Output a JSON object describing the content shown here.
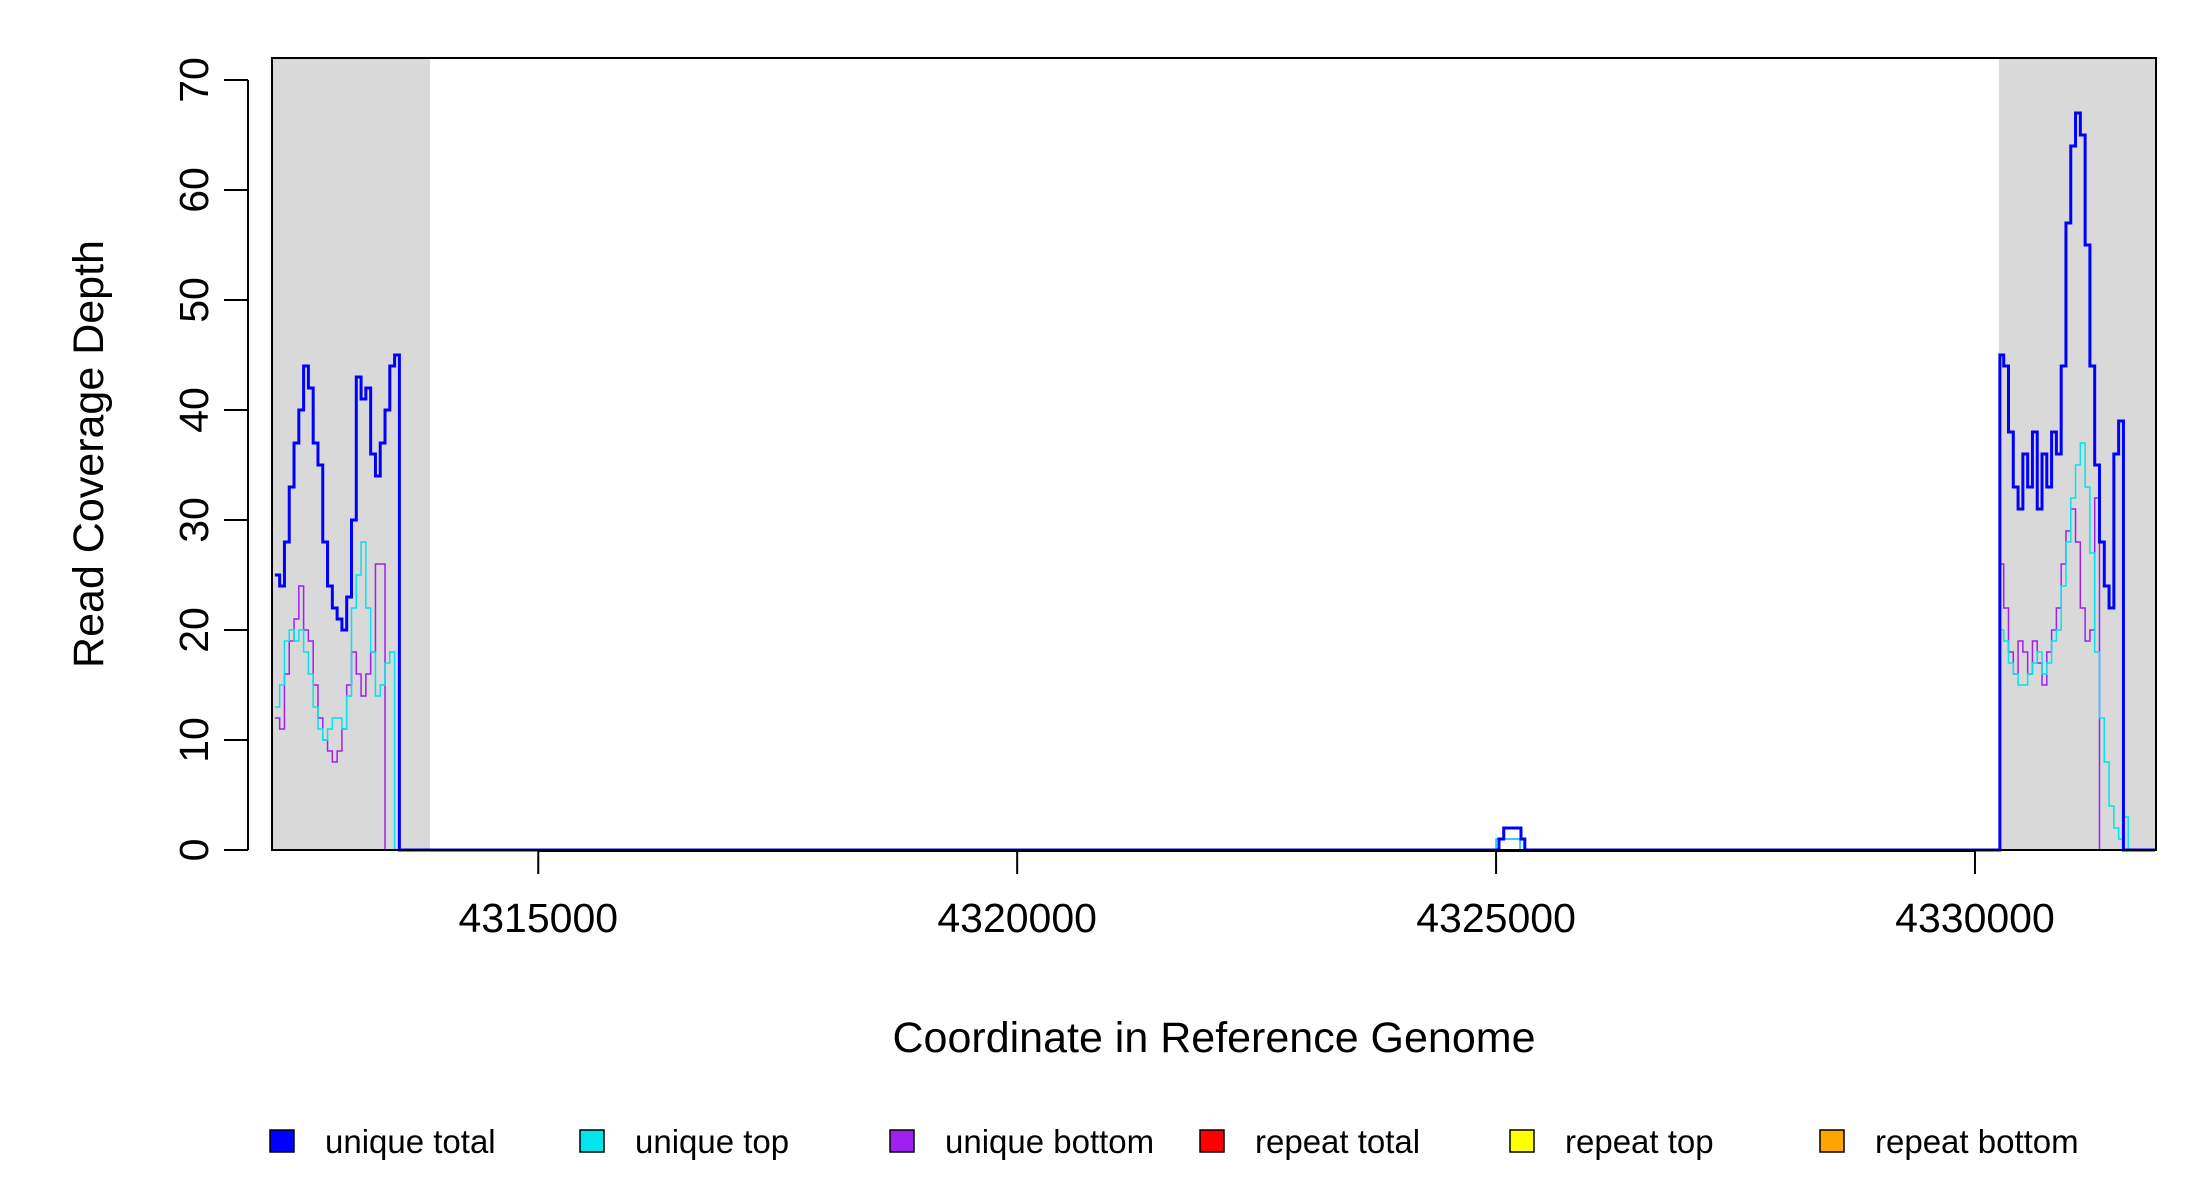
{
  "chart_data": {
    "type": "line",
    "title": "",
    "xlabel": "Coordinate in Reference Genome",
    "ylabel": "Read Coverage Depth",
    "xlim": [
      4312220,
      4331890
    ],
    "ylim": [
      0,
      72
    ],
    "x_ticks": [
      4315000,
      4320000,
      4325000,
      4330000
    ],
    "x_tick_labels": [
      "4315000",
      "4320000",
      "4325000",
      "4330000"
    ],
    "y_ticks": [
      0,
      10,
      20,
      30,
      40,
      50,
      60,
      70
    ],
    "y_tick_labels": [
      "0",
      "10",
      "20",
      "30",
      "40",
      "50",
      "60",
      "70"
    ],
    "grid": false,
    "legend_position": "bottom",
    "shaded_regions": [
      {
        "x_start": 4312220,
        "x_end": 4313870,
        "color": "#d9d9d9"
      },
      {
        "x_start": 4330250,
        "x_end": 4331890,
        "color": "#d9d9d9"
      }
    ],
    "series": [
      {
        "name": "unique total",
        "color": "#0000ff",
        "line_width": 3,
        "x": [
          4312250,
          4312300,
          4312350,
          4312400,
          4312450,
          4312500,
          4312550,
          4312600,
          4312650,
          4312700,
          4312750,
          4312800,
          4312850,
          4312900,
          4312950,
          4313000,
          4313050,
          4313100,
          4313150,
          4313200,
          4313250,
          4313300,
          4313350,
          4313400,
          4313450,
          4313500,
          4313550,
          4313600,
          4313650,
          4313700,
          4313750,
          4313800,
          4313850,
          4313870,
          4313880,
          4325000,
          4325030,
          4325080,
          4325200,
          4325260,
          4325300,
          4330250,
          4330260,
          4330300,
          4330350,
          4330400,
          4330450,
          4330500,
          4330550,
          4330600,
          4330650,
          4330700,
          4330750,
          4330800,
          4330850,
          4330900,
          4330950,
          4331000,
          4331050,
          4331100,
          4331150,
          4331200,
          4331250,
          4331300,
          4331350,
          4331400,
          4331450,
          4331500,
          4331550,
          4331600,
          4331650,
          4331700,
          4331750,
          4331800,
          4331850,
          4331880
        ],
        "y": [
          25,
          24,
          28,
          33,
          37,
          40,
          44,
          42,
          37,
          35,
          28,
          24,
          22,
          21,
          20,
          23,
          30,
          43,
          41,
          42,
          36,
          34,
          37,
          40,
          44,
          45,
          0,
          0,
          0,
          0,
          0,
          0,
          0,
          0,
          0,
          0,
          1,
          2,
          2,
          1,
          0,
          0,
          45,
          44,
          38,
          33,
          31,
          36,
          33,
          38,
          31,
          36,
          33,
          38,
          36,
          44,
          57,
          64,
          67,
          65,
          55,
          44,
          35,
          28,
          24,
          22,
          36,
          39,
          0,
          0,
          0,
          0,
          0,
          0,
          0,
          0
        ],
        "note_fill": "segmented"
      },
      {
        "name": "unique top",
        "color": "#00e5ee",
        "line_width": 1.5,
        "x": [
          4312250,
          4312300,
          4312350,
          4312400,
          4312450,
          4312500,
          4312550,
          4312600,
          4312650,
          4312700,
          4312750,
          4312800,
          4312850,
          4312900,
          4312950,
          4313000,
          4313050,
          4313100,
          4313150,
          4313200,
          4313250,
          4313300,
          4313350,
          4313400,
          4313450,
          4313500,
          4325000,
          4325050,
          4325200,
          4325250,
          4330250,
          4330260,
          4330300,
          4330350,
          4330400,
          4330450,
          4330500,
          4330550,
          4330600,
          4330650,
          4330700,
          4330750,
          4330800,
          4330850,
          4330900,
          4330950,
          4331000,
          4331050,
          4331100,
          4331150,
          4331200,
          4331250,
          4331300,
          4331350,
          4331400,
          4331450,
          4331500,
          4331550,
          4331600,
          4331650,
          4331700,
          4331750,
          4331800,
          4331850,
          4331880
        ],
        "y": [
          13,
          15,
          19,
          20,
          19,
          20,
          18,
          16,
          13,
          11,
          10,
          11,
          12,
          12,
          11,
          14,
          22,
          25,
          28,
          22,
          18,
          14,
          15,
          17,
          18,
          0,
          1,
          1,
          1,
          0,
          0,
          20,
          19,
          17,
          16,
          15,
          15,
          16,
          17,
          18,
          16,
          17,
          19,
          20,
          24,
          28,
          32,
          35,
          37,
          33,
          27,
          18,
          12,
          8,
          4,
          2,
          1,
          3,
          0,
          0,
          0,
          0,
          0,
          0,
          0
        ],
        "note_fill": "segmented"
      },
      {
        "name": "unique bottom",
        "color": "#a020f0",
        "line_width": 1.5,
        "x": [
          4312250,
          4312300,
          4312350,
          4312400,
          4312450,
          4312500,
          4312550,
          4312600,
          4312650,
          4312700,
          4312750,
          4312800,
          4312850,
          4312900,
          4312950,
          4313000,
          4313050,
          4313100,
          4313150,
          4313200,
          4313250,
          4313300,
          4313350,
          4313400,
          4313450,
          4313500,
          4325000,
          4325050,
          4325200,
          4325250,
          4330250,
          4330260,
          4330300,
          4330350,
          4330400,
          4330450,
          4330500,
          4330550,
          4330600,
          4330650,
          4330700,
          4330750,
          4330800,
          4330850,
          4330900,
          4330950,
          4331000,
          4331050,
          4331100,
          4331150,
          4331200,
          4331250,
          4331300,
          4331350,
          4331400,
          4331450,
          4331500,
          4331550,
          4331600,
          4331650,
          4331700,
          4331750,
          4331800,
          4331850,
          4331880
        ],
        "y": [
          12,
          11,
          16,
          19,
          21,
          24,
          20,
          19,
          15,
          12,
          10,
          9,
          8,
          9,
          11,
          15,
          18,
          16,
          14,
          16,
          18,
          26,
          26,
          0,
          0,
          0,
          1,
          1,
          1,
          0,
          0,
          26,
          22,
          18,
          16,
          19,
          18,
          16,
          19,
          17,
          15,
          18,
          20,
          22,
          26,
          29,
          31,
          28,
          22,
          19,
          20,
          32,
          0,
          0,
          0,
          0,
          0,
          0,
          0,
          0,
          0,
          0,
          0,
          0,
          0
        ],
        "note_fill": "segmented"
      },
      {
        "name": "repeat total",
        "color": "#ff0000",
        "line_width": 1.5,
        "x": [
          4312250,
          4331880
        ],
        "y": [
          0,
          0
        ]
      },
      {
        "name": "repeat top",
        "color": "#ffff00",
        "line_width": 1.5,
        "x": [
          4312250,
          4331880
        ],
        "y": [
          0,
          0
        ]
      },
      {
        "name": "repeat bottom",
        "color": "#ffa500",
        "line_width": 1.5,
        "x": [
          4312250,
          4331880
        ],
        "y": [
          0,
          0
        ]
      }
    ]
  }
}
